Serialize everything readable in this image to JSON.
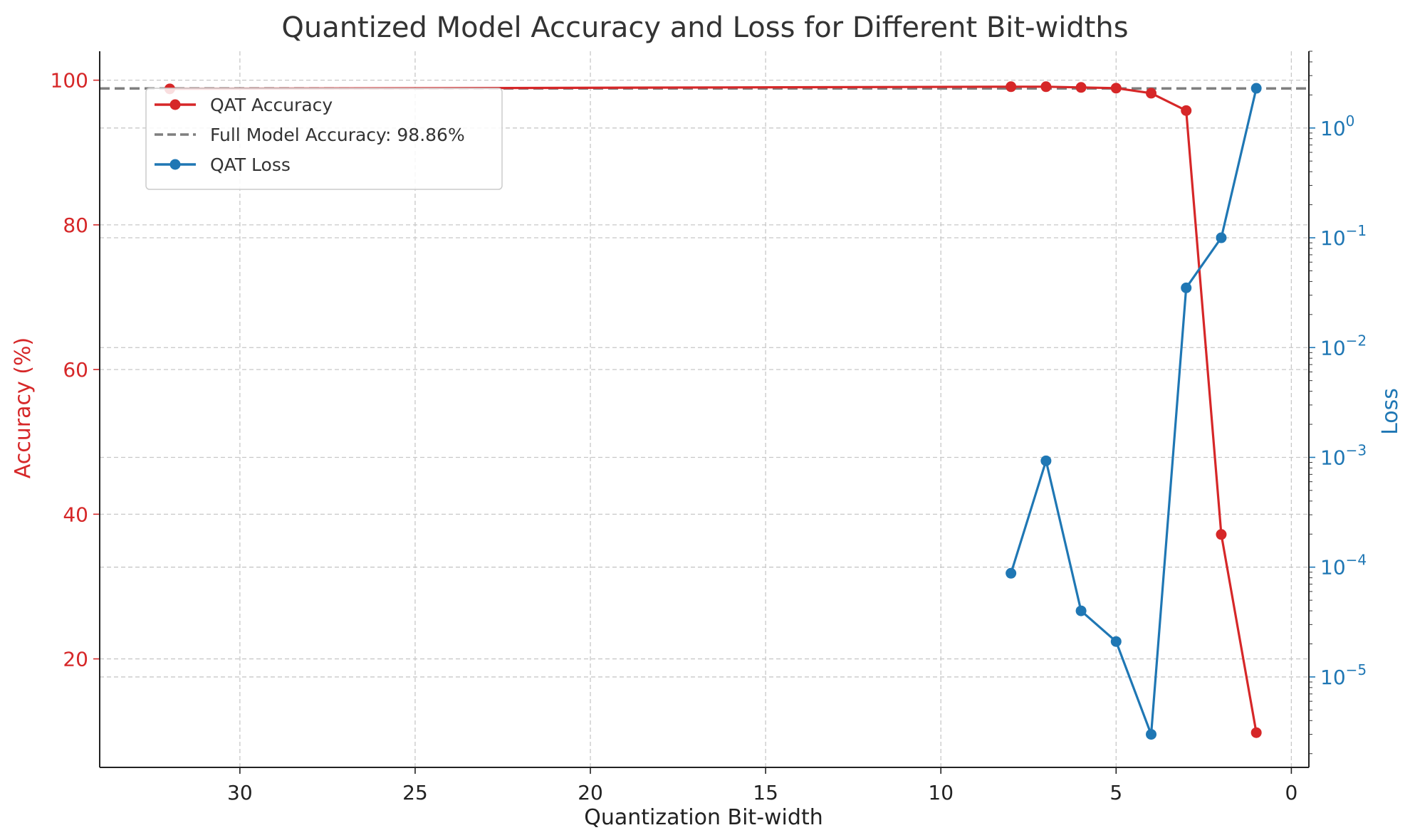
{
  "colors": {
    "accuracy": "#d62728",
    "loss": "#1f77b4",
    "reference": "#7f7f7f"
  },
  "chart_data": {
    "type": "line",
    "title": "Quantized Model Accuracy and Loss for Different Bit-widths",
    "xlabel": "Quantization Bit-width",
    "ylabel_left": "Accuracy (%)",
    "ylabel_right": "Loss",
    "x_axis": {
      "inverted": true,
      "xlim": [
        34,
        -0.5
      ],
      "ticks": [
        30,
        25,
        20,
        15,
        10,
        5,
        0
      ]
    },
    "y_left": {
      "ylim": [
        5,
        104
      ],
      "ticks": [
        20,
        40,
        60,
        80,
        100
      ]
    },
    "y_right": {
      "scale": "log",
      "ylim": [
        1.5e-06,
        5.0
      ],
      "ticks": [
        {
          "value": 1e-05,
          "base": "10",
          "exp": "−5"
        },
        {
          "value": 0.0001,
          "base": "10",
          "exp": "−4"
        },
        {
          "value": 0.001,
          "base": "10",
          "exp": "−3"
        },
        {
          "value": 0.01,
          "base": "10",
          "exp": "−2"
        },
        {
          "value": 0.1,
          "base": "10",
          "exp": "−1"
        },
        {
          "value": 1,
          "base": "10",
          "exp": "0"
        }
      ]
    },
    "grid": true,
    "legend_position": "top-left",
    "series": [
      {
        "name": "QAT Accuracy",
        "axis": "left",
        "x": [
          32,
          8,
          7,
          6,
          5,
          4,
          3,
          2,
          1
        ],
        "y": [
          98.8,
          99.1,
          99.1,
          99.0,
          98.9,
          98.2,
          95.8,
          37.2,
          9.8
        ]
      },
      {
        "name": "Full Model Accuracy: 98.86%",
        "axis": "left",
        "type": "hline",
        "y": 98.86
      },
      {
        "name": "QAT Loss",
        "axis": "right",
        "x": [
          8,
          7,
          6,
          5,
          4,
          3,
          2,
          1
        ],
        "y": [
          8.8e-05,
          0.00093,
          4e-05,
          2.1e-05,
          3e-06,
          0.035,
          0.1,
          2.3
        ]
      }
    ]
  }
}
